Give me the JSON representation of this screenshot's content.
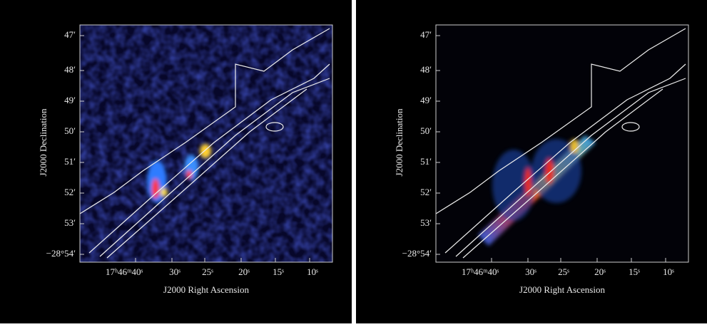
{
  "panels": [
    {
      "x_axis_title": "J2000 Right Ascension",
      "y_axis_title": "J2000 Declination",
      "yticks": [
        "47′",
        "48′",
        "49′",
        "50′",
        "51′",
        "52′",
        "53′",
        "−28°54′"
      ],
      "xticks": [
        "17ʰ46ᵐ40ˢ",
        "30ˢ",
        "25ˢ",
        "20ˢ",
        "15ˢ",
        "10ˢ"
      ]
    },
    {
      "x_axis_title": "J2000 Right Ascension",
      "y_axis_title": "J2000 Declination",
      "yticks": [
        "47′",
        "48′",
        "49′",
        "50′",
        "51′",
        "52′",
        "53′",
        "−28°54′"
      ],
      "xticks": [
        "17ʰ46ᵐ40ˢ",
        "30ˢ",
        "25ˢ",
        "20ˢ",
        "15ˢ",
        "10ˢ"
      ]
    }
  ]
}
